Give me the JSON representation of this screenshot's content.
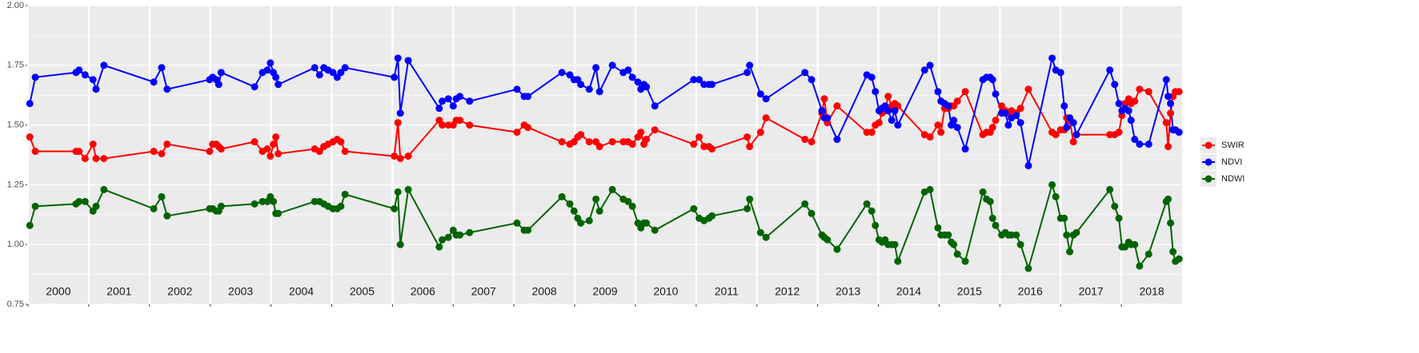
{
  "chart_data": {
    "type": "line",
    "legend": "right",
    "grid": true,
    "xlim": [
      2000,
      2019
    ],
    "xticks": [
      {
        "value": 2000,
        "label": "2000"
      },
      {
        "value": 2001,
        "label": "2001"
      },
      {
        "value": 2002,
        "label": "2002"
      },
      {
        "value": 2003,
        "label": "2003"
      },
      {
        "value": 2004,
        "label": "2004"
      },
      {
        "value": 2005,
        "label": "2005"
      },
      {
        "value": 2006,
        "label": "2006"
      },
      {
        "value": 2007,
        "label": "2007"
      },
      {
        "value": 2008,
        "label": "2008"
      },
      {
        "value": 2009,
        "label": "2009"
      },
      {
        "value": 2010,
        "label": "2010"
      },
      {
        "value": 2011,
        "label": "2011"
      },
      {
        "value": 2012,
        "label": "2012"
      },
      {
        "value": 2013,
        "label": "2013"
      },
      {
        "value": 2014,
        "label": "2014"
      },
      {
        "value": 2015,
        "label": "2015"
      },
      {
        "value": 2016,
        "label": "2016"
      },
      {
        "value": 2017,
        "label": "2017"
      },
      {
        "value": 2018,
        "label": "2018"
      }
    ],
    "ylim": [
      0.75,
      2.0
    ],
    "yticks": [
      0.75,
      {
        "value": 1,
        "label": "1.00"
      },
      1.25,
      {
        "value": 1.5,
        "label": "1.50"
      },
      1.75,
      {
        "value": 2,
        "label": "2.00"
      }
    ],
    "x": [
      2000.03,
      2000.12,
      2000.79,
      2000.84,
      2000.94,
      2001.07,
      2001.12,
      2001.25,
      2002.07,
      2002.2,
      2002.29,
      2002.99,
      2003.04,
      2003.1,
      2003.14,
      2003.18,
      2003.73,
      2003.86,
      2003.94,
      2003.99,
      2004.04,
      2004.08,
      2004.12,
      2004.72,
      2004.8,
      2004.87,
      2004.94,
      2005.02,
      2005.09,
      2005.15,
      2005.22,
      2006.03,
      2006.09,
      2006.13,
      2006.26,
      2006.77,
      2006.82,
      2006.92,
      2007.0,
      2007.05,
      2007.11,
      2007.27,
      2008.05,
      2008.17,
      2008.23,
      2008.79,
      2008.92,
      2008.99,
      2009.05,
      2009.1,
      2009.24,
      2009.35,
      2009.41,
      2009.62,
      2009.8,
      2009.88,
      2009.95,
      2010.04,
      2010.09,
      2010.14,
      2010.18,
      2010.32,
      2010.96,
      2011.05,
      2011.13,
      2011.21,
      2011.26,
      2011.84,
      2011.88,
      2012.06,
      2012.15,
      2012.79,
      2012.9,
      2013.07,
      2013.11,
      2013.16,
      2013.32,
      2013.81,
      2013.89,
      2013.95,
      2014.01,
      2014.06,
      2014.11,
      2014.16,
      2014.22,
      2014.27,
      2014.32,
      2014.76,
      2014.85,
      2014.98,
      2015.03,
      2015.09,
      2015.15,
      2015.2,
      2015.24,
      2015.3,
      2015.43,
      2015.72,
      2015.78,
      2015.84,
      2015.88,
      2015.93,
      2016.03,
      2016.09,
      2016.14,
      2016.19,
      2016.27,
      2016.34,
      2016.47,
      2016.86,
      2016.92,
      2017.0,
      2017.06,
      2017.1,
      2017.15,
      2017.21,
      2017.26,
      2017.81,
      2017.89,
      2017.96,
      2018.01,
      2018.06,
      2018.12,
      2018.16,
      2018.22,
      2018.3,
      2018.45,
      2018.74,
      2018.77,
      2018.81,
      2018.85,
      2018.89,
      2018.95
    ],
    "series": [
      {
        "name": "SWIR",
        "color": "#ff0000",
        "values": [
          1.45,
          1.39,
          1.39,
          1.39,
          1.36,
          1.42,
          1.36,
          1.36,
          1.39,
          1.38,
          1.42,
          1.39,
          1.42,
          1.42,
          1.41,
          1.4,
          1.43,
          1.39,
          1.4,
          1.37,
          1.42,
          1.45,
          1.38,
          1.4,
          1.39,
          1.41,
          1.42,
          1.43,
          1.44,
          1.43,
          1.39,
          1.37,
          1.51,
          1.36,
          1.37,
          1.52,
          1.5,
          1.5,
          1.5,
          1.52,
          1.52,
          1.5,
          1.47,
          1.5,
          1.49,
          1.43,
          1.42,
          1.43,
          1.45,
          1.46,
          1.43,
          1.43,
          1.41,
          1.43,
          1.43,
          1.43,
          1.42,
          1.45,
          1.47,
          1.42,
          1.44,
          1.48,
          1.42,
          1.45,
          1.41,
          1.41,
          1.4,
          1.45,
          1.41,
          1.47,
          1.53,
          1.44,
          1.43,
          1.55,
          1.61,
          1.51,
          1.58,
          1.47,
          1.47,
          1.5,
          1.51,
          1.55,
          1.56,
          1.62,
          1.58,
          1.59,
          1.58,
          1.46,
          1.45,
          1.5,
          1.47,
          1.57,
          1.57,
          1.58,
          1.58,
          1.6,
          1.64,
          1.46,
          1.47,
          1.47,
          1.49,
          1.52,
          1.58,
          1.56,
          1.55,
          1.56,
          1.55,
          1.57,
          1.65,
          1.47,
          1.46,
          1.48,
          1.48,
          1.53,
          1.52,
          1.43,
          1.46,
          1.46,
          1.46,
          1.47,
          1.54,
          1.59,
          1.61,
          1.59,
          1.6,
          1.65,
          1.64,
          1.51,
          1.41,
          1.55,
          1.62,
          1.64,
          1.64
        ]
      },
      {
        "name": "NDVI",
        "color": "#0000ff",
        "values": [
          1.59,
          1.7,
          1.72,
          1.73,
          1.71,
          1.69,
          1.65,
          1.75,
          1.68,
          1.74,
          1.65,
          1.69,
          1.7,
          1.69,
          1.67,
          1.72,
          1.66,
          1.72,
          1.73,
          1.76,
          1.72,
          1.7,
          1.67,
          1.74,
          1.71,
          1.74,
          1.73,
          1.72,
          1.7,
          1.72,
          1.74,
          1.7,
          1.78,
          1.55,
          1.77,
          1.57,
          1.6,
          1.61,
          1.58,
          1.61,
          1.62,
          1.6,
          1.65,
          1.62,
          1.62,
          1.72,
          1.71,
          1.69,
          1.69,
          1.67,
          1.65,
          1.74,
          1.64,
          1.75,
          1.72,
          1.73,
          1.7,
          1.68,
          1.65,
          1.67,
          1.66,
          1.58,
          1.69,
          1.69,
          1.67,
          1.67,
          1.67,
          1.72,
          1.75,
          1.63,
          1.61,
          1.72,
          1.69,
          1.56,
          1.53,
          1.53,
          1.44,
          1.71,
          1.7,
          1.64,
          1.56,
          1.57,
          1.58,
          1.56,
          1.52,
          1.56,
          1.5,
          1.73,
          1.75,
          1.64,
          1.6,
          1.59,
          1.58,
          1.5,
          1.52,
          1.49,
          1.4,
          1.69,
          1.7,
          1.7,
          1.69,
          1.63,
          1.55,
          1.55,
          1.5,
          1.53,
          1.54,
          1.51,
          1.33,
          1.78,
          1.73,
          1.72,
          1.58,
          1.49,
          1.53,
          1.51,
          1.46,
          1.73,
          1.67,
          1.59,
          1.56,
          1.57,
          1.56,
          1.52,
          1.44,
          1.42,
          1.42,
          1.69,
          1.62,
          1.59,
          1.48,
          1.48,
          1.47
        ]
      },
      {
        "name": "NDWI",
        "color": "#006400",
        "values": [
          1.08,
          1.16,
          1.17,
          1.18,
          1.18,
          1.14,
          1.16,
          1.23,
          1.15,
          1.2,
          1.12,
          1.15,
          1.15,
          1.14,
          1.14,
          1.16,
          1.17,
          1.18,
          1.18,
          1.2,
          1.18,
          1.13,
          1.13,
          1.18,
          1.18,
          1.17,
          1.16,
          1.15,
          1.15,
          1.16,
          1.21,
          1.15,
          1.22,
          1.0,
          1.23,
          0.99,
          1.02,
          1.03,
          1.06,
          1.04,
          1.04,
          1.05,
          1.09,
          1.06,
          1.06,
          1.2,
          1.17,
          1.14,
          1.11,
          1.09,
          1.1,
          1.19,
          1.14,
          1.23,
          1.19,
          1.18,
          1.16,
          1.09,
          1.07,
          1.09,
          1.09,
          1.06,
          1.15,
          1.11,
          1.1,
          1.11,
          1.12,
          1.15,
          1.19,
          1.05,
          1.03,
          1.17,
          1.13,
          1.04,
          1.03,
          1.02,
          0.98,
          1.17,
          1.14,
          1.08,
          1.02,
          1.01,
          1.02,
          1.0,
          1.0,
          1.0,
          0.93,
          1.22,
          1.23,
          1.07,
          1.04,
          1.04,
          1.04,
          1.01,
          1.0,
          0.96,
          0.93,
          1.22,
          1.19,
          1.18,
          1.11,
          1.08,
          1.04,
          1.05,
          1.04,
          1.04,
          1.04,
          1.0,
          0.9,
          1.25,
          1.2,
          1.11,
          1.11,
          1.04,
          0.97,
          1.04,
          1.05,
          1.23,
          1.16,
          1.11,
          0.99,
          0.99,
          1.01,
          1.0,
          1.0,
          0.91,
          0.96,
          1.18,
          1.19,
          1.09,
          0.97,
          0.93,
          0.94
        ]
      }
    ]
  }
}
